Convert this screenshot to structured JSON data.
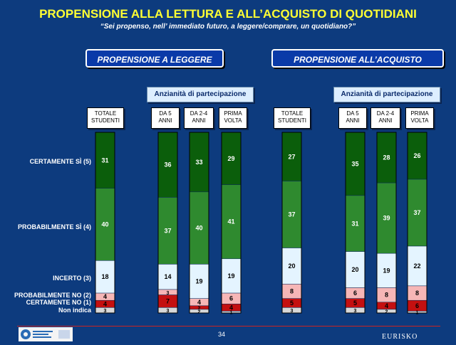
{
  "title": "PROPENSIONE ALLA LETTURA E ALL’ACQUISTO DI QUOTIDIANI",
  "subtitle": "“Sei propenso, nell’ immediato futuro, a leggere/comprare, un quotidiano?”",
  "sections": [
    "PROPENSIONE A LEGGERE",
    "PROPENSIONE ALL’ACQUISTO"
  ],
  "subgroup_label": "Anzianità di partecipazione",
  "column_headers": [
    "TOTALE STUDENTI",
    "DA 5 ANNI",
    "DA 2-4 ANNI",
    "PRIMA VOLTA",
    "TOTALE STUDENTI",
    "DA 5 ANNI",
    "DA 2-4 ANNI",
    "PRIMA VOLTA"
  ],
  "row_labels": [
    "CERTAMENTE SÌ (5)",
    "PROBABILMENTE SÌ (4)",
    "INCERTO (3)",
    "PROBABILMENTE NO (2)",
    "CERTAMENTE NO (1)",
    "Non indica"
  ],
  "footer": {
    "page_number": "34",
    "brand": "EURISKO"
  },
  "colors": {
    "background": "#0d3b7e",
    "certamente_si": "#0b5e0b",
    "probabilmente_si": "#2f8a2f",
    "incerto": "#e4f4ff",
    "probabilmente_no": "#f6b6b6",
    "certamente_no": "#c41010",
    "non_indica": "#d8d8d8",
    "title": "#ffff33"
  },
  "chart_data": {
    "type": "bar",
    "stacked": true,
    "percent": true,
    "categories": [
      "TOTALE STUDENTI",
      "DA 5 ANNI",
      "DA 2-4 ANNI",
      "PRIMA VOLTA",
      "TOTALE STUDENTI",
      "DA 5 ANNI",
      "DA 2-4 ANNI",
      "PRIMA VOLTA"
    ],
    "groups": [
      {
        "name": "PROPENSIONE A LEGGERE",
        "categories": [
          0,
          1,
          2,
          3
        ]
      },
      {
        "name": "PROPENSIONE ALL’ACQUISTO",
        "categories": [
          4,
          5,
          6,
          7
        ]
      }
    ],
    "series": [
      {
        "name": "CERTAMENTE SÌ (5)",
        "values": [
          31,
          36,
          33,
          29,
          27,
          35,
          28,
          26
        ],
        "labels": [
          "31",
          "36",
          "33",
          "29",
          "27",
          "35",
          "28",
          "26"
        ]
      },
      {
        "name": "PROBABILMENTE SÌ (4)",
        "values": [
          40,
          37,
          40,
          41,
          37,
          31,
          39,
          37
        ],
        "labels": [
          "40",
          "37",
          "40",
          "41",
          "37",
          "31",
          "39",
          "37"
        ]
      },
      {
        "name": "INCERTO (3)",
        "values": [
          18,
          14,
          19,
          19,
          20,
          20,
          19,
          22
        ],
        "labels": [
          "18",
          "14",
          "19",
          "19",
          "20",
          "20",
          "19",
          "22"
        ]
      },
      {
        "name": "PROBABILMENTE NO (2)",
        "values": [
          4,
          3,
          4,
          6,
          8,
          6,
          8,
          8
        ],
        "labels": [
          "4",
          "3",
          "4",
          "6",
          "8",
          "6",
          "8",
          "8"
        ]
      },
      {
        "name": "CERTAMENTE NO (1)",
        "values": [
          4,
          7,
          2,
          4,
          5,
          5,
          4,
          6
        ],
        "labels": [
          "4",
          "7",
          "2",
          "4",
          "5",
          "5",
          "4",
          "6"
        ]
      },
      {
        "name": "Non indica",
        "values": [
          3,
          3,
          2,
          1,
          3,
          3,
          2,
          1
        ],
        "labels": [
          "3",
          "3",
          "2",
          "1",
          "3",
          "3",
          "2",
          "1"
        ]
      }
    ],
    "ylim": [
      0,
      100
    ]
  }
}
